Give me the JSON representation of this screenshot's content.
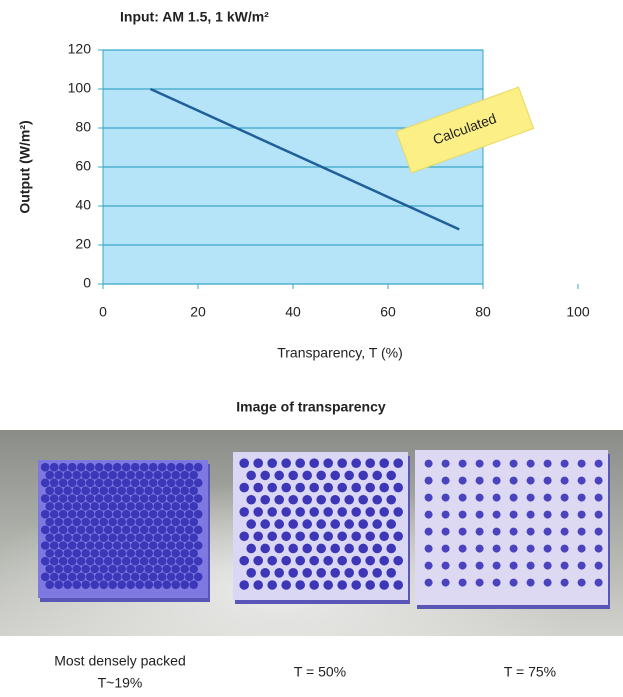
{
  "chart_data": {
    "type": "line",
    "title": "Input: AM 1.5, 1 kW/m²",
    "xlabel": "Transparency, T (%)",
    "ylabel": "Output (W/m²)",
    "annotation": "Calculated",
    "x": [
      10,
      75
    ],
    "values": [
      100,
      28
    ],
    "color": "#1f5f9a",
    "xlim": [
      0,
      100
    ],
    "ylim": [
      0,
      120
    ],
    "xticks": [
      0,
      20,
      40,
      60,
      80,
      100
    ],
    "yticks": [
      0,
      20,
      40,
      60,
      80,
      100,
      120
    ],
    "grid": true
  },
  "figure": {
    "title": "Image of transparency",
    "captions": [
      [
        "Most densely packed",
        "T~19%"
      ],
      [
        "T = 50%"
      ],
      [
        "T = 75%"
      ]
    ]
  }
}
